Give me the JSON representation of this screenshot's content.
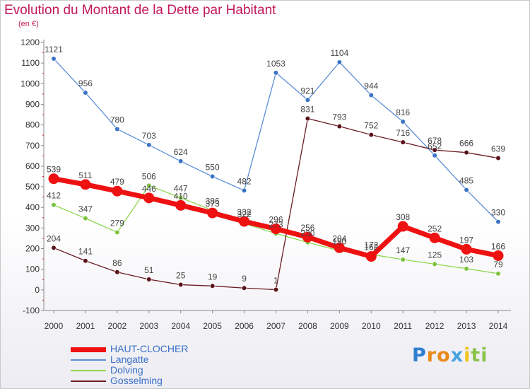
{
  "chart_data": {
    "type": "line",
    "title": "Evolution du Montant de la Dette par Habitant",
    "subtitle": "(en €)",
    "x": [
      "2000",
      "2001",
      "2002",
      "2003",
      "2004",
      "2005",
      "2006",
      "2007",
      "2008",
      "2009",
      "2010",
      "2011",
      "2012",
      "2013",
      "2014"
    ],
    "ylim": [
      -100,
      1200
    ],
    "yticks": [
      -100,
      0,
      100,
      200,
      300,
      400,
      500,
      600,
      700,
      800,
      900,
      1000,
      1100,
      1200
    ],
    "grid": false,
    "legend_position": "bottom-left",
    "series": [
      {
        "name": "HAUT-CLOCHER",
        "color": "#ee1111",
        "values": [
          539,
          511,
          479,
          446,
          410,
          373,
          332,
          296,
          256,
          204,
          162,
          308,
          252,
          197,
          166
        ]
      },
      {
        "name": "Langatte",
        "color": "#5b8ed6",
        "values": [
          1121,
          956,
          780,
          703,
          624,
          550,
          482,
          1053,
          921,
          1104,
          944,
          816,
          652,
          485,
          330
        ]
      },
      {
        "name": "Dolving",
        "color": "#8fd64f",
        "values": [
          412,
          347,
          279,
          506,
          447,
          386,
          322,
          273,
          230,
          190,
          172,
          147,
          125,
          103,
          79
        ]
      },
      {
        "name": "Gosselming",
        "color": "#6b1b22",
        "values": [
          204,
          141,
          86,
          51,
          25,
          19,
          9,
          1,
          831,
          793,
          752,
          716,
          678,
          666,
          639
        ]
      }
    ]
  },
  "brand": {
    "letters": [
      "P",
      "r",
      "o",
      "x",
      "i",
      "t",
      "i"
    ],
    "colors": [
      "#2f7fd1",
      "#e98a1c",
      "#e98a1c",
      "#4aa3df",
      "#f0c419",
      "#8bc34a",
      "#8bc34a"
    ]
  }
}
